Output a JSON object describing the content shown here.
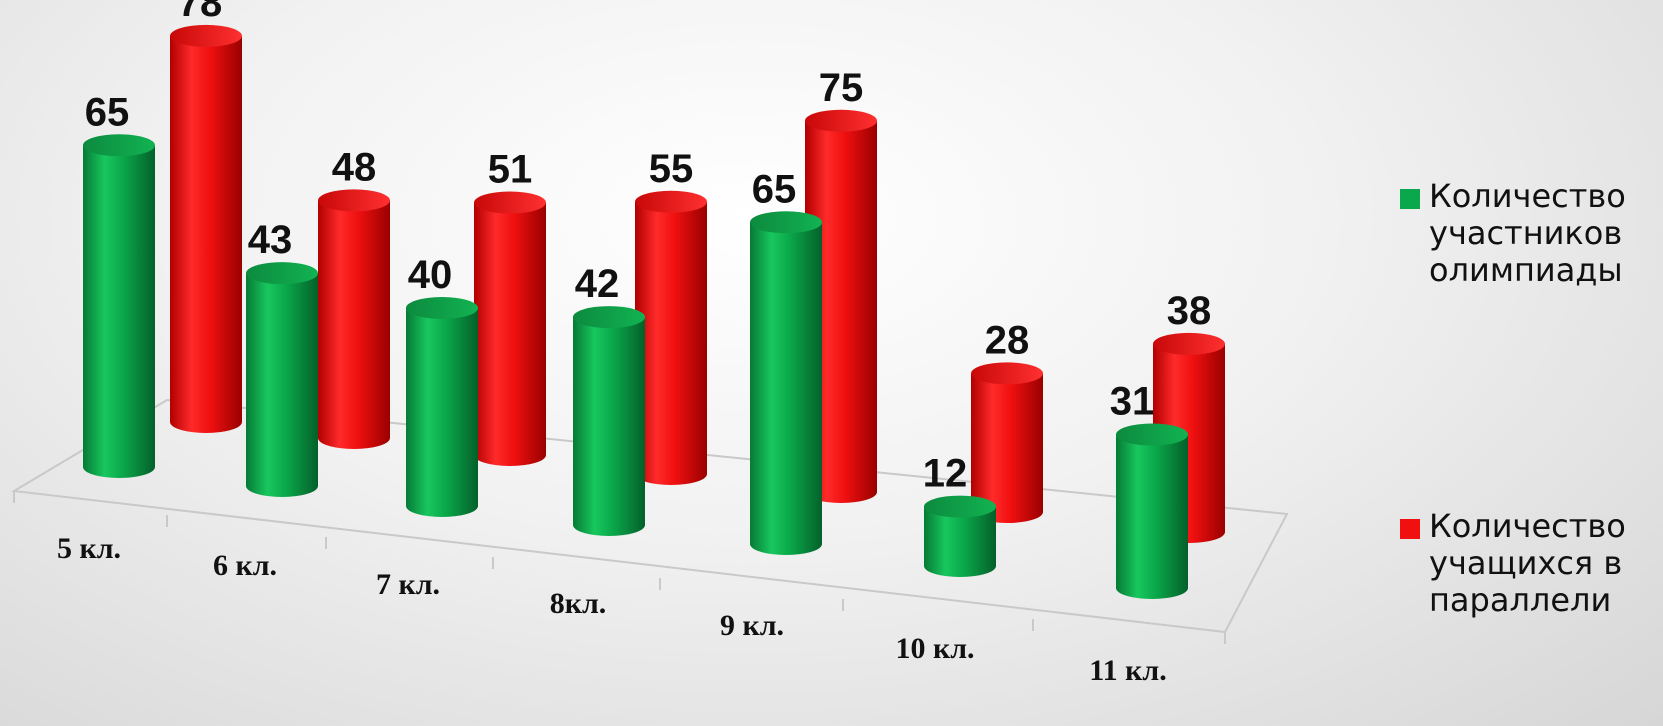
{
  "chart_data": {
    "type": "bar",
    "categories": [
      "5 кл.",
      "6 кл.",
      "7 кл.",
      "8кл.",
      "9 кл.",
      "10 кл.",
      "11 кл."
    ],
    "series": [
      {
        "name": "Количество участников олимпиады",
        "values": [
          65,
          43,
          40,
          42,
          65,
          12,
          31
        ],
        "color": "#0aa84a"
      },
      {
        "name": "Количество учащихся в параллели",
        "values": [
          78,
          48,
          51,
          55,
          75,
          28,
          38
        ],
        "color": "#f01010"
      }
    ],
    "grid": false,
    "legend_position": "right"
  }
}
